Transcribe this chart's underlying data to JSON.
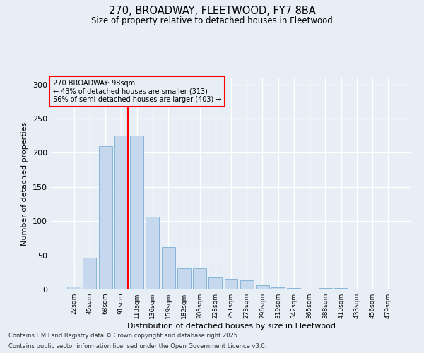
{
  "title": "270, BROADWAY, FLEETWOOD, FY7 8BA",
  "subtitle": "Size of property relative to detached houses in Fleetwood",
  "xlabel": "Distribution of detached houses by size in Fleetwood",
  "ylabel": "Number of detached properties",
  "bar_color": "#c5d8ee",
  "bar_edge_color": "#7aafd4",
  "background_color": "#e8eef5",
  "grid_color": "#ffffff",
  "categories": [
    "22sqm",
    "45sqm",
    "68sqm",
    "91sqm",
    "113sqm",
    "136sqm",
    "159sqm",
    "182sqm",
    "205sqm",
    "228sqm",
    "251sqm",
    "273sqm",
    "296sqm",
    "319sqm",
    "342sqm",
    "365sqm",
    "388sqm",
    "410sqm",
    "433sqm",
    "456sqm",
    "479sqm"
  ],
  "values": [
    4,
    46,
    210,
    225,
    225,
    106,
    62,
    31,
    31,
    18,
    16,
    13,
    6,
    3,
    2,
    1,
    2,
    2,
    0,
    0,
    1
  ],
  "ylim": [
    0,
    310
  ],
  "yticks": [
    0,
    50,
    100,
    150,
    200,
    250,
    300
  ],
  "annotation_title": "270 BROADWAY: 98sqm",
  "annotation_line1": "← 43% of detached houses are smaller (313)",
  "annotation_line2": "56% of semi-detached houses are larger (403) →",
  "vline_bin_index": 3,
  "footnote1": "Contains HM Land Registry data © Crown copyright and database right 2025.",
  "footnote2": "Contains public sector information licensed under the Open Government Licence v3.0."
}
